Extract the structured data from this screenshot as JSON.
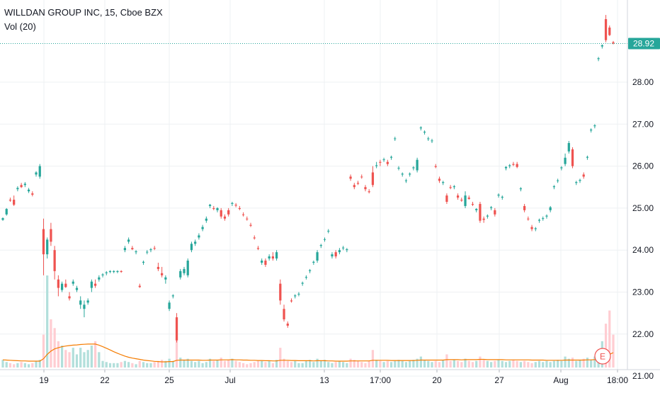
{
  "legend": {
    "title": "WILLDAN GROUP INC, 15, Cboe BZX",
    "volume_label": "Vol (20)"
  },
  "price_axis": {
    "ticks": [
      "28.92",
      "28.00",
      "27.00",
      "26.00",
      "25.00",
      "24.00",
      "23.00",
      "22.00",
      "21.00"
    ],
    "last_price_label": "28.92"
  },
  "time_axis": {
    "ticks": [
      "19",
      "22",
      "25",
      "Jul",
      "13",
      "17:00",
      "20",
      "27",
      "Aug",
      "18:00"
    ]
  },
  "earnings_marker": "E",
  "colors": {
    "up": "#26a69a",
    "down": "#ef5350",
    "volume_up": "#b2dfdb",
    "volume_down": "#ffcdd2",
    "volume_ma": "#f57c00",
    "last_price_bg": "#26a69a",
    "last_price_line": "#26a69a",
    "grid": "#eef0f3",
    "axis_text": "#131722"
  },
  "chart_data": {
    "type": "candlestick",
    "title": "WILLDAN GROUP INC, 15, Cboe BZX",
    "ylim": [
      21.2,
      29.8
    ],
    "grid": true,
    "last_price": 28.92,
    "candles": [
      [
        24.72,
        24.78,
        24.7,
        24.76
      ],
      [
        24.85,
        25.0,
        24.82,
        24.98
      ],
      [
        25.2,
        25.25,
        25.15,
        25.18
      ],
      [
        25.2,
        25.3,
        25.05,
        25.08
      ],
      [
        25.45,
        25.52,
        25.4,
        25.48
      ],
      [
        25.55,
        25.6,
        25.48,
        25.5
      ],
      [
        25.55,
        25.62,
        25.5,
        25.58
      ],
      [
        25.4,
        25.48,
        25.36,
        25.44
      ],
      [
        25.35,
        25.4,
        25.28,
        25.32
      ],
      [
        25.8,
        25.88,
        25.75,
        25.85
      ],
      [
        25.75,
        26.05,
        25.7,
        26.0
      ],
      [
        24.5,
        24.75,
        23.4,
        23.9
      ],
      [
        23.9,
        24.3,
        23.8,
        24.25
      ],
      [
        24.5,
        24.65,
        24.1,
        24.2
      ],
      [
        24.0,
        24.1,
        23.3,
        23.5
      ],
      [
        23.3,
        23.4,
        22.9,
        23.1
      ],
      [
        23.05,
        23.25,
        23.0,
        23.2
      ],
      [
        23.2,
        23.3,
        23.1,
        23.12
      ],
      [
        22.9,
        23.0,
        22.8,
        22.85
      ],
      [
        23.2,
        23.3,
        23.15,
        23.25
      ],
      [
        23.05,
        23.15,
        23.0,
        23.1
      ],
      [
        22.7,
        22.9,
        22.6,
        22.8
      ],
      [
        22.6,
        22.8,
        22.4,
        22.7
      ],
      [
        22.75,
        22.85,
        22.7,
        22.8
      ],
      [
        23.1,
        23.3,
        23.0,
        23.25
      ],
      [
        23.2,
        23.3,
        23.1,
        23.15
      ],
      [
        23.3,
        23.4,
        23.25,
        23.35
      ],
      [
        23.4,
        23.45,
        23.35,
        23.42
      ],
      [
        23.45,
        23.5,
        23.4,
        23.47
      ],
      [
        23.48,
        23.52,
        23.45,
        23.5
      ],
      [
        23.48,
        23.52,
        23.45,
        23.5
      ],
      [
        23.48,
        23.52,
        23.45,
        23.5
      ],
      [
        23.5,
        23.52,
        23.46,
        23.48
      ],
      [
        24.0,
        24.1,
        23.95,
        24.05
      ],
      [
        24.2,
        24.3,
        24.15,
        24.25
      ],
      [
        24.05,
        24.1,
        24.0,
        24.02
      ],
      [
        23.95,
        24.0,
        23.9,
        23.97
      ],
      [
        23.15,
        23.2,
        23.1,
        23.12
      ],
      [
        23.7,
        23.75,
        23.65,
        23.72
      ],
      [
        23.95,
        24.0,
        23.9,
        23.96
      ],
      [
        24.0,
        24.05,
        23.95,
        24.02
      ],
      [
        24.05,
        24.1,
        24.0,
        24.04
      ],
      [
        23.6,
        23.7,
        23.5,
        23.55
      ],
      [
        23.45,
        23.6,
        23.35,
        23.4
      ],
      [
        23.3,
        23.4,
        23.2,
        23.35
      ],
      [
        22.6,
        22.8,
        22.55,
        22.75
      ],
      [
        22.9,
        22.95,
        22.85,
        22.92
      ],
      [
        22.4,
        22.5,
        21.8,
        21.85
      ],
      [
        23.35,
        23.55,
        23.3,
        23.5
      ],
      [
        23.45,
        23.6,
        23.4,
        23.55
      ],
      [
        23.4,
        23.8,
        23.35,
        23.75
      ],
      [
        24.0,
        24.2,
        23.95,
        24.15
      ],
      [
        24.15,
        24.25,
        24.1,
        24.2
      ],
      [
        24.3,
        24.4,
        24.25,
        24.35
      ],
      [
        24.5,
        24.6,
        24.45,
        24.55
      ],
      [
        24.7,
        24.8,
        24.65,
        24.75
      ],
      [
        25.05,
        25.1,
        25.0,
        25.08
      ],
      [
        25.0,
        25.05,
        24.95,
        24.98
      ],
      [
        24.95,
        25.02,
        24.9,
        25.0
      ],
      [
        24.95,
        25.0,
        24.75,
        24.8
      ],
      [
        24.8,
        24.85,
        24.7,
        24.75
      ],
      [
        24.95,
        25.0,
        24.8,
        24.85
      ],
      [
        25.1,
        25.15,
        25.05,
        25.12
      ],
      [
        25.08,
        25.12,
        25.02,
        25.06
      ],
      [
        25.0,
        25.05,
        24.95,
        24.98
      ],
      [
        24.85,
        24.9,
        24.8,
        24.84
      ],
      [
        24.75,
        24.8,
        24.7,
        24.74
      ],
      [
        24.6,
        24.65,
        24.55,
        24.58
      ],
      [
        24.3,
        24.35,
        24.25,
        24.28
      ],
      [
        24.05,
        24.1,
        24.0,
        24.03
      ],
      [
        23.7,
        23.8,
        23.65,
        23.75
      ],
      [
        23.75,
        23.8,
        23.6,
        23.65
      ],
      [
        23.8,
        23.9,
        23.75,
        23.85
      ],
      [
        23.85,
        23.95,
        23.75,
        23.8
      ],
      [
        23.8,
        24.0,
        23.75,
        23.95
      ],
      [
        23.2,
        23.3,
        22.7,
        22.8
      ],
      [
        22.6,
        22.7,
        22.3,
        22.35
      ],
      [
        22.25,
        22.3,
        22.15,
        22.2
      ],
      [
        22.8,
        22.85,
        22.75,
        22.78
      ],
      [
        22.9,
        22.95,
        22.85,
        22.92
      ],
      [
        22.95,
        23.0,
        22.9,
        22.96
      ],
      [
        23.2,
        23.25,
        23.15,
        23.22
      ],
      [
        23.35,
        23.4,
        23.3,
        23.36
      ],
      [
        23.5,
        23.55,
        23.45,
        23.52
      ],
      [
        23.7,
        23.75,
        23.65,
        23.72
      ],
      [
        23.75,
        24.0,
        23.7,
        23.95
      ],
      [
        24.1,
        24.15,
        24.05,
        24.12
      ],
      [
        24.25,
        24.3,
        24.2,
        24.26
      ],
      [
        24.45,
        24.5,
        24.4,
        24.46
      ],
      [
        23.85,
        23.95,
        23.8,
        23.9
      ],
      [
        23.95,
        24.0,
        23.8,
        23.85
      ],
      [
        23.95,
        24.05,
        23.9,
        24.0
      ],
      [
        24.05,
        24.1,
        24.0,
        24.06
      ],
      [
        24.0,
        24.05,
        23.95,
        24.02
      ],
      [
        25.75,
        25.8,
        25.65,
        25.7
      ],
      [
        25.55,
        25.6,
        25.45,
        25.5
      ],
      [
        25.6,
        25.65,
        25.55,
        25.58
      ],
      [
        25.75,
        25.8,
        25.7,
        25.74
      ],
      [
        25.5,
        25.55,
        25.4,
        25.45
      ],
      [
        25.4,
        25.45,
        25.35,
        25.38
      ],
      [
        25.85,
        26.0,
        25.5,
        25.55
      ],
      [
        26.0,
        26.1,
        25.95,
        26.02
      ],
      [
        26.1,
        26.15,
        26.0,
        26.08
      ],
      [
        26.15,
        26.2,
        26.1,
        26.16
      ],
      [
        26.1,
        26.15,
        26.0,
        26.05
      ],
      [
        26.2,
        26.25,
        26.15,
        26.22
      ],
      [
        26.65,
        26.7,
        26.6,
        26.66
      ],
      [
        25.95,
        26.0,
        25.9,
        25.96
      ],
      [
        25.8,
        25.85,
        25.75,
        25.82
      ],
      [
        25.65,
        25.7,
        25.6,
        25.66
      ],
      [
        25.8,
        25.85,
        25.75,
        25.82
      ],
      [
        25.95,
        26.0,
        25.9,
        25.97
      ],
      [
        25.9,
        26.2,
        25.85,
        26.15
      ],
      [
        26.9,
        26.95,
        26.85,
        26.92
      ],
      [
        26.8,
        26.85,
        26.75,
        26.82
      ],
      [
        26.65,
        26.7,
        26.6,
        26.66
      ],
      [
        26.6,
        26.65,
        26.55,
        26.61
      ],
      [
        26.0,
        26.05,
        25.95,
        25.98
      ],
      [
        25.7,
        25.75,
        25.6,
        25.65
      ],
      [
        25.6,
        25.65,
        25.55,
        25.62
      ],
      [
        25.3,
        25.35,
        25.1,
        25.15
      ],
      [
        25.5,
        25.55,
        25.45,
        25.48
      ],
      [
        25.5,
        25.55,
        25.45,
        25.52
      ],
      [
        25.3,
        25.35,
        25.2,
        25.25
      ],
      [
        25.2,
        25.25,
        25.15,
        25.18
      ],
      [
        25.05,
        25.4,
        25.0,
        25.3
      ],
      [
        25.25,
        25.3,
        25.2,
        25.22
      ],
      [
        25.1,
        25.15,
        25.05,
        25.08
      ],
      [
        24.95,
        25.0,
        24.9,
        24.98
      ],
      [
        25.1,
        25.15,
        24.65,
        24.7
      ],
      [
        24.75,
        24.8,
        24.65,
        24.72
      ],
      [
        24.8,
        24.85,
        24.75,
        24.82
      ],
      [
        25.0,
        25.05,
        24.95,
        25.02
      ],
      [
        24.95,
        25.0,
        24.8,
        24.85
      ],
      [
        25.3,
        25.35,
        25.25,
        25.32
      ],
      [
        25.25,
        25.3,
        25.2,
        25.27
      ],
      [
        25.95,
        26.0,
        25.9,
        25.98
      ],
      [
        26.0,
        26.05,
        25.95,
        26.02
      ],
      [
        26.05,
        26.1,
        26.0,
        26.03
      ],
      [
        26.05,
        26.1,
        25.95,
        25.98
      ],
      [
        25.45,
        25.5,
        25.4,
        25.47
      ],
      [
        25.05,
        25.1,
        24.9,
        24.95
      ],
      [
        24.75,
        24.8,
        24.7,
        24.74
      ],
      [
        24.55,
        24.6,
        24.45,
        24.5
      ],
      [
        24.5,
        24.55,
        24.45,
        24.52
      ],
      [
        24.7,
        24.75,
        24.65,
        24.72
      ],
      [
        24.75,
        24.8,
        24.7,
        24.76
      ],
      [
        24.8,
        24.85,
        24.75,
        24.82
      ],
      [
        24.95,
        25.05,
        24.9,
        25.02
      ],
      [
        25.5,
        25.55,
        25.45,
        25.52
      ],
      [
        25.65,
        25.7,
        25.6,
        25.66
      ],
      [
        25.95,
        26.0,
        25.9,
        25.97
      ],
      [
        26.05,
        26.3,
        26.0,
        26.2
      ],
      [
        26.35,
        26.6,
        26.3,
        26.55
      ],
      [
        26.4,
        26.45,
        25.95,
        26.0
      ],
      [
        25.6,
        25.65,
        25.55,
        25.62
      ],
      [
        25.65,
        25.7,
        25.6,
        25.67
      ],
      [
        25.8,
        25.85,
        25.7,
        25.75
      ],
      [
        26.2,
        26.25,
        26.15,
        26.22
      ],
      [
        26.85,
        26.9,
        26.8,
        26.87
      ],
      [
        26.95,
        27.0,
        26.9,
        26.97
      ],
      [
        28.55,
        28.6,
        28.5,
        28.57
      ],
      [
        28.85,
        28.9,
        28.8,
        28.88
      ],
      [
        29.5,
        29.6,
        28.95,
        29.0
      ],
      [
        29.3,
        29.35,
        29.1,
        29.12
      ],
      [
        28.95,
        28.98,
        28.9,
        28.92
      ]
    ],
    "volume": [
      0.35,
      0.25,
      0.2,
      0.15,
      0.2,
      0.25,
      0.2,
      0.15,
      0.2,
      0.3,
      0.35,
      1.5,
      4.2,
      2.2,
      1.8,
      1.2,
      1.0,
      0.8,
      0.7,
      0.9,
      0.6,
      0.9,
      0.7,
      0.8,
      1.0,
      1.2,
      0.7,
      0.3,
      0.25,
      0.2,
      0.2,
      0.2,
      0.25,
      0.3,
      0.25,
      0.2,
      0.15,
      0.3,
      0.25,
      0.2,
      0.2,
      0.25,
      0.3,
      0.35,
      0.3,
      0.4,
      0.3,
      1.4,
      0.45,
      0.35,
      0.4,
      0.3,
      0.25,
      0.3,
      0.2,
      0.25,
      0.4,
      0.3,
      0.35,
      0.45,
      0.3,
      0.35,
      0.4,
      0.3,
      0.25,
      0.2,
      0.15,
      0.2,
      0.25,
      0.3,
      0.3,
      0.25,
      0.3,
      0.2,
      0.35,
      0.9,
      0.4,
      0.3,
      0.25,
      0.3,
      0.2,
      0.2,
      0.3,
      0.35,
      0.25,
      0.4,
      0.3,
      0.35,
      0.25,
      0.2,
      0.25,
      0.3,
      0.25,
      0.2,
      0.4,
      0.35,
      0.3,
      0.25,
      0.2,
      0.3,
      0.8,
      0.35,
      0.3,
      0.25,
      0.3,
      0.25,
      0.3,
      0.35,
      0.3,
      0.25,
      0.3,
      0.35,
      0.4,
      0.5,
      0.35,
      0.3,
      0.25,
      0.3,
      0.25,
      0.35,
      0.6,
      0.3,
      0.35,
      0.3,
      0.25,
      0.4,
      0.3,
      0.25,
      0.3,
      0.5,
      0.35,
      0.3,
      0.25,
      0.3,
      0.35,
      0.3,
      0.25,
      0.3,
      0.35,
      0.3,
      0.25,
      0.3,
      0.25,
      0.2,
      0.25,
      0.3,
      0.25,
      0.3,
      0.25,
      0.3,
      0.35,
      0.3,
      0.5,
      0.4,
      0.45,
      0.3,
      0.35,
      0.4,
      0.45,
      0.35,
      0.5,
      0.8,
      1.2,
      2.0,
      2.6,
      1.5
    ],
    "volume_ma": [
      0.35,
      0.34,
      0.33,
      0.32,
      0.31,
      0.3,
      0.3,
      0.29,
      0.29,
      0.29,
      0.29,
      0.4,
      0.6,
      0.75,
      0.85,
      0.9,
      0.95,
      0.98,
      1.0,
      1.02,
      1.03,
      1.05,
      1.06,
      1.07,
      1.07,
      1.07,
      1.02,
      0.95,
      0.88,
      0.8,
      0.72,
      0.65,
      0.58,
      0.52,
      0.47,
      0.43,
      0.4,
      0.37,
      0.34,
      0.32,
      0.3,
      0.28,
      0.27,
      0.26,
      0.26,
      0.27,
      0.27,
      0.33,
      0.34,
      0.34,
      0.34,
      0.34,
      0.34,
      0.34,
      0.33,
      0.33,
      0.34,
      0.34,
      0.34,
      0.35,
      0.35,
      0.35,
      0.36,
      0.35,
      0.35,
      0.34,
      0.34,
      0.33,
      0.33,
      0.32,
      0.32,
      0.31,
      0.31,
      0.3,
      0.3,
      0.33,
      0.33,
      0.33,
      0.32,
      0.32,
      0.31,
      0.31,
      0.31,
      0.31,
      0.3,
      0.31,
      0.31,
      0.31,
      0.3,
      0.3,
      0.29,
      0.29,
      0.29,
      0.29,
      0.3,
      0.3,
      0.3,
      0.3,
      0.3,
      0.3,
      0.33,
      0.33,
      0.33,
      0.33,
      0.33,
      0.32,
      0.32,
      0.32,
      0.32,
      0.32,
      0.32,
      0.32,
      0.33,
      0.34,
      0.34,
      0.34,
      0.34,
      0.34,
      0.34,
      0.34,
      0.36,
      0.36,
      0.36,
      0.36,
      0.35,
      0.36,
      0.36,
      0.36,
      0.36,
      0.37,
      0.37,
      0.36,
      0.36,
      0.36,
      0.36,
      0.36,
      0.35,
      0.35,
      0.35,
      0.35,
      0.35,
      0.35,
      0.35,
      0.34,
      0.34,
      0.34,
      0.34,
      0.33,
      0.33,
      0.33,
      0.33,
      0.33,
      0.34,
      0.34,
      0.34,
      0.34,
      0.34,
      0.34,
      0.35,
      0.35,
      0.36,
      0.38,
      0.42,
      0.5,
      0.6,
      0.68
    ]
  }
}
